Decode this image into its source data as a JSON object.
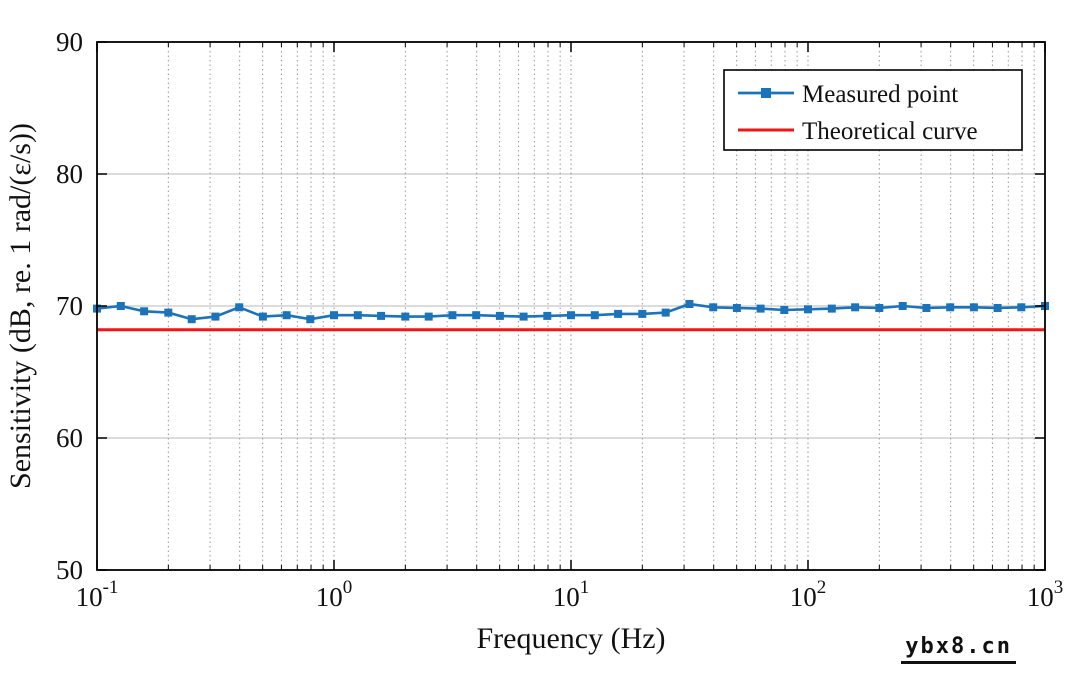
{
  "chart_data": {
    "type": "line",
    "title": "",
    "xlabel": "Frequency (Hz)",
    "ylabel": "Sensitivity (dB, re. 1 rad/(ε/s))",
    "x_scale": "log",
    "xlim": [
      0.1,
      1000
    ],
    "ylim": [
      50,
      90
    ],
    "y_ticks": [
      50,
      60,
      70,
      80,
      90
    ],
    "x_major_ticks": [
      0.1,
      1,
      10,
      100,
      1000
    ],
    "x_tick_labels": [
      {
        "base": "10",
        "exp": "-1"
      },
      {
        "base": "10",
        "exp": "0"
      },
      {
        "base": "10",
        "exp": "1"
      },
      {
        "base": "10",
        "exp": "2"
      },
      {
        "base": "10",
        "exp": "3"
      }
    ],
    "grid": "horizontal-major-solid, vertical-major-and-minor-dotted",
    "legend_position": "top-right",
    "colors": {
      "measured": "#1b74bb",
      "theoretical": "#ee1616",
      "grid_horizontal": "#c6c6c6",
      "grid_vertical": "#9a9a9a",
      "axis": "#000000"
    },
    "series": [
      {
        "name": "Measured point",
        "style": "line-with-square-markers",
        "color": "#1b74bb",
        "x": [
          0.1,
          0.126,
          0.158,
          0.2,
          0.251,
          0.316,
          0.398,
          0.501,
          0.631,
          0.794,
          1,
          1.26,
          1.58,
          2,
          2.51,
          3.16,
          3.98,
          5.01,
          6.31,
          7.94,
          10,
          12.6,
          15.8,
          20,
          25.1,
          31.6,
          39.8,
          50.1,
          63.1,
          79.4,
          100,
          126,
          158,
          200,
          251,
          316,
          398,
          501,
          631,
          794,
          1000
        ],
        "y": [
          69.8,
          70.0,
          69.6,
          69.5,
          69.0,
          69.2,
          69.9,
          69.2,
          69.3,
          69.0,
          69.3,
          69.3,
          69.25,
          69.2,
          69.2,
          69.3,
          69.3,
          69.25,
          69.2,
          69.25,
          69.3,
          69.3,
          69.4,
          69.4,
          69.5,
          70.15,
          69.9,
          69.85,
          69.8,
          69.7,
          69.75,
          69.8,
          69.9,
          69.85,
          70.0,
          69.85,
          69.9,
          69.9,
          69.85,
          69.9,
          70.0
        ]
      },
      {
        "name": "Theoretical curve",
        "style": "line",
        "color": "#ee1616",
        "x": [
          0.1,
          1000
        ],
        "y": [
          68.2,
          68.2
        ]
      }
    ]
  },
  "watermark": {
    "text": "ybx8.cn"
  }
}
